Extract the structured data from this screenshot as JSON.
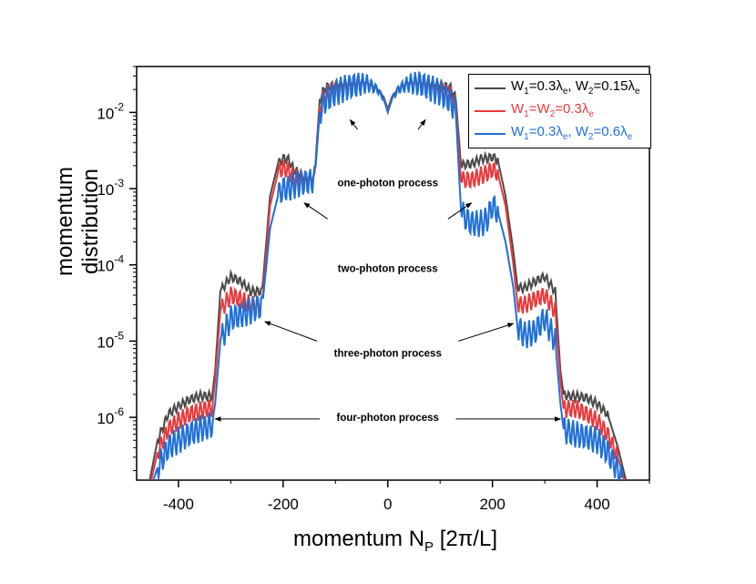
{
  "chart_data": {
    "type": "line",
    "xlabel": "momentum N_P [2π/L]",
    "xlabel_parts": {
      "main": "momentum N",
      "sub": "P",
      "unit": " [2π/L]"
    },
    "ylabel": "momentum distribution",
    "xlim": [
      -480,
      500
    ],
    "ylim": [
      1.5e-07,
      0.04
    ],
    "yscale": "log",
    "xticks": [
      -400,
      -200,
      0,
      200,
      400
    ],
    "xtick_labels": [
      "-400",
      "-200",
      "0",
      "200",
      "400"
    ],
    "yticks": [
      1e-06,
      1e-05,
      0.0001,
      0.001,
      0.01
    ],
    "ytick_labels": [
      {
        "base": "10",
        "exp": "-6"
      },
      {
        "base": "10",
        "exp": "-5"
      },
      {
        "base": "10",
        "exp": "-4"
      },
      {
        "base": "10",
        "exp": "-3"
      },
      {
        "base": "10",
        "exp": "-2"
      }
    ],
    "grid": false,
    "legend_position": "top-right",
    "series": [
      {
        "name": "W1=0.3λe, W2=0.15λe",
        "legend_parts": [
          [
            "W",
            "1",
            "=0.3λ",
            "e",
            ", W",
            "2",
            "=0.15λ",
            "e"
          ]
        ],
        "color": "#4a4a4a",
        "x": [
          -455,
          -440,
          -420,
          -400,
          -380,
          -360,
          -345,
          -336,
          -330,
          -320,
          -300,
          -280,
          -262,
          -248,
          -240,
          -225,
          -210,
          -200,
          -190,
          -180,
          -160,
          -150,
          -140,
          -130,
          -120,
          -100,
          -80,
          -60,
          -40,
          -20,
          -8,
          0,
          8,
          20,
          40,
          60,
          80,
          100,
          120,
          130,
          140,
          150,
          160,
          180,
          190,
          200,
          210,
          225,
          240,
          248,
          262,
          280,
          300,
          320,
          330,
          336,
          345,
          360,
          380,
          400,
          420,
          440,
          455
        ],
        "values": [
          1.5e-07,
          5e-07,
          1.1e-06,
          1.4e-06,
          1.7e-06,
          1.9e-06,
          1.9e-06,
          1.9e-06,
          4e-06,
          4.5e-05,
          7e-05,
          6e-05,
          4.5e-05,
          4.5e-05,
          4.5e-05,
          0.0008,
          0.0021,
          0.0025,
          0.0024,
          0.0018,
          0.0014,
          0.0014,
          0.0014,
          0.015,
          0.021,
          0.023,
          0.024,
          0.025,
          0.025,
          0.021,
          0.016,
          0.011,
          0.016,
          0.021,
          0.025,
          0.025,
          0.024,
          0.023,
          0.021,
          0.015,
          0.002,
          0.0021,
          0.0021,
          0.0025,
          0.0025,
          0.0026,
          0.0024,
          0.0008,
          0.00015,
          5e-05,
          5e-05,
          6e-05,
          7e-05,
          4.5e-05,
          4e-06,
          2e-06,
          1.9e-06,
          1.9e-06,
          1.8e-06,
          1.5e-06,
          1.1e-06,
          4e-07,
          1.5e-07
        ]
      },
      {
        "name": "W1=W2=0.3λe",
        "legend_parts": [
          [
            "W",
            "1",
            "=W",
            "2",
            "=0.3λ",
            "e"
          ]
        ],
        "color": "#e8393b",
        "x": [
          -452,
          -440,
          -420,
          -400,
          -380,
          -360,
          -345,
          -336,
          -330,
          -320,
          -300,
          -280,
          -262,
          -248,
          -240,
          -225,
          -210,
          -200,
          -190,
          -180,
          -160,
          -150,
          -140,
          -130,
          -120,
          -100,
          -80,
          -60,
          -40,
          -20,
          -8,
          0,
          8,
          20,
          40,
          60,
          80,
          100,
          120,
          130,
          140,
          150,
          160,
          180,
          190,
          200,
          210,
          225,
          240,
          248,
          262,
          280,
          300,
          320,
          330,
          336,
          345,
          360,
          380,
          400,
          420,
          440,
          452
        ],
        "values": [
          1.5e-07,
          3.5e-07,
          7e-07,
          9e-07,
          1.1e-06,
          1.2e-06,
          1.3e-06,
          1.3e-06,
          3e-06,
          2.5e-05,
          4e-05,
          3.5e-05,
          3e-05,
          3e-05,
          3e-05,
          0.0006,
          0.0016,
          0.0019,
          0.0017,
          0.0014,
          0.0013,
          0.0013,
          0.0013,
          0.012,
          0.017,
          0.02,
          0.022,
          0.024,
          0.024,
          0.02,
          0.015,
          0.0105,
          0.015,
          0.02,
          0.024,
          0.024,
          0.022,
          0.02,
          0.017,
          0.012,
          0.0013,
          0.0013,
          0.0013,
          0.0015,
          0.0016,
          0.0018,
          0.0016,
          0.0006,
          0.0001,
          3e-05,
          3e-05,
          3.5e-05,
          4e-05,
          2.5e-05,
          3e-06,
          1.3e-06,
          1.3e-06,
          1.3e-06,
          1.1e-06,
          9e-07,
          6e-07,
          3e-07,
          1.5e-07
        ]
      },
      {
        "name": "W1=0.3λe, W2=0.6λe",
        "legend_parts": [
          [
            "W",
            "1",
            "=0.3λ",
            "e",
            ", W",
            "2",
            "=0.6λ",
            "e"
          ]
        ],
        "color": "#1f6fd6",
        "x": [
          -448,
          -440,
          -420,
          -400,
          -380,
          -360,
          -345,
          -336,
          -330,
          -320,
          -300,
          -280,
          -262,
          -248,
          -240,
          -225,
          -210,
          -200,
          -190,
          -180,
          -160,
          -150,
          -140,
          -130,
          -120,
          -100,
          -80,
          -60,
          -40,
          -20,
          -8,
          0,
          8,
          20,
          40,
          60,
          80,
          100,
          120,
          130,
          140,
          150,
          160,
          180,
          190,
          200,
          210,
          225,
          240,
          248,
          262,
          280,
          300,
          320,
          330,
          336,
          345,
          360,
          380,
          400,
          420,
          440,
          448
        ],
        "values": [
          1.5e-07,
          2.2e-07,
          4e-07,
          5e-07,
          6e-07,
          7e-07,
          7.5e-07,
          8e-07,
          1.5e-06,
          1e-05,
          2e-05,
          2.2e-05,
          2.5e-05,
          2.8e-05,
          2.8e-05,
          0.0003,
          0.0008,
          0.001,
          0.001,
          0.0011,
          0.0012,
          0.00125,
          0.0013,
          0.01,
          0.014,
          0.018,
          0.021,
          0.023,
          0.024,
          0.02,
          0.015,
          0.01,
          0.015,
          0.02,
          0.024,
          0.024,
          0.021,
          0.018,
          0.014,
          0.01,
          0.0005,
          0.0004,
          0.00035,
          0.00035,
          0.0004,
          0.0006,
          0.0005,
          0.0002,
          5e-05,
          1.5e-05,
          1.2e-05,
          1.3e-05,
          2e-05,
          1e-05,
          1.5e-06,
          7e-07,
          6.5e-07,
          6e-07,
          5.5e-07,
          5e-07,
          3.5e-07,
          2e-07,
          1.5e-07
        ]
      }
    ],
    "annotations": [
      {
        "text": "one-photon process",
        "x": 0,
        "y": 0.0012,
        "arrows": [
          [
            -72,
            0.008,
            -58,
            0.006
          ],
          [
            72,
            0.008,
            58,
            0.006
          ]
        ]
      },
      {
        "text": "two-photon process",
        "x": 0,
        "y": 9e-05,
        "arrows": [
          [
            -160,
            0.00065,
            -115,
            0.0004
          ],
          [
            160,
            0.00065,
            115,
            0.0004
          ]
        ]
      },
      {
        "text": "three-photon process",
        "x": 0,
        "y": 7e-06,
        "arrows": [
          [
            -235,
            1.8e-05,
            -135,
            1e-05
          ],
          [
            240,
            1.7e-05,
            135,
            1e-05
          ]
        ]
      },
      {
        "text": "four-photon process",
        "x": 0,
        "y": 1e-06,
        "arrows": [
          [
            -330,
            9.5e-07,
            -130,
            9.5e-07
          ],
          [
            330,
            9.5e-07,
            130,
            9.5e-07
          ]
        ]
      }
    ]
  }
}
